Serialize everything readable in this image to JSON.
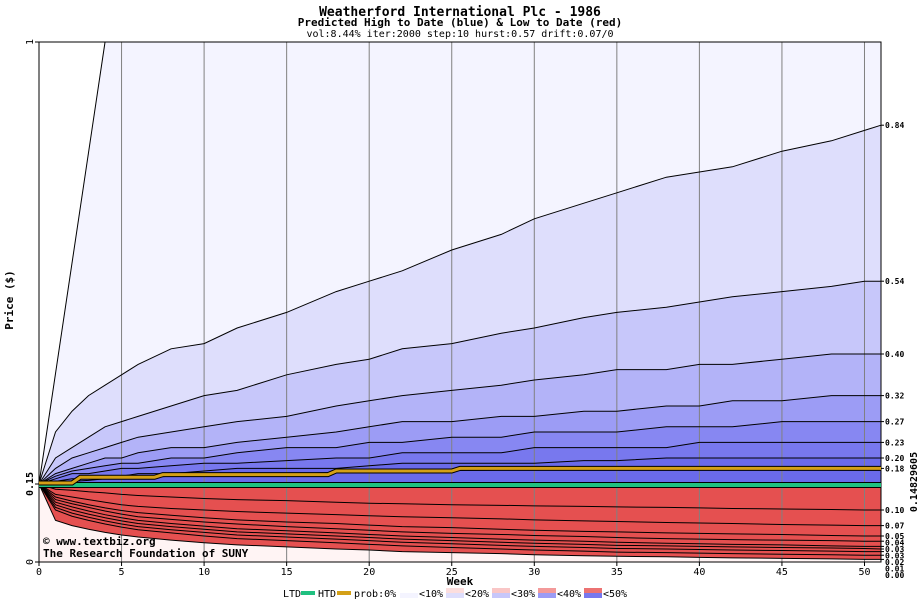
{
  "chart_data": {
    "type": "area",
    "title": "Weatherford International Plc - 1986",
    "subtitle": "Predicted High to Date (blue) &  Low to Date (red)",
    "params": "vol:8.44% iter:2000 step:10 hurst:0.57 drift:0.07/0",
    "xlabel": "Week",
    "ylabel": "Price ($)",
    "xlim": [
      0,
      51
    ],
    "ylim": [
      0,
      1
    ],
    "x_ticks": [
      "0",
      "5",
      "10",
      "15",
      "20",
      "25",
      "30",
      "35",
      "40",
      "45",
      "50"
    ],
    "y_ticks": [
      "0",
      "0.15",
      "1"
    ],
    "start_price": 0.15,
    "grid": true,
    "weeks": [
      0,
      1,
      2,
      3,
      4,
      5,
      6,
      8,
      10,
      12,
      15,
      18,
      20,
      22,
      25,
      28,
      30,
      33,
      35,
      38,
      40,
      42,
      45,
      48,
      50,
      51
    ],
    "high_series": [
      {
        "label": "0.84",
        "values": [
          0.15,
          0.25,
          0.29,
          0.32,
          0.34,
          0.36,
          0.38,
          0.41,
          0.42,
          0.45,
          0.48,
          0.52,
          0.54,
          0.56,
          0.6,
          0.63,
          0.66,
          0.69,
          0.71,
          0.74,
          0.75,
          0.76,
          0.79,
          0.81,
          0.83,
          0.84
        ]
      },
      {
        "label": "0.54",
        "values": [
          0.15,
          0.2,
          0.22,
          0.24,
          0.26,
          0.27,
          0.28,
          0.3,
          0.32,
          0.33,
          0.36,
          0.38,
          0.39,
          0.41,
          0.42,
          0.44,
          0.45,
          0.47,
          0.48,
          0.49,
          0.5,
          0.51,
          0.52,
          0.53,
          0.54,
          0.54
        ]
      },
      {
        "label": "0.40",
        "values": [
          0.15,
          0.18,
          0.2,
          0.21,
          0.22,
          0.23,
          0.24,
          0.25,
          0.26,
          0.27,
          0.28,
          0.3,
          0.31,
          0.32,
          0.33,
          0.34,
          0.35,
          0.36,
          0.37,
          0.37,
          0.38,
          0.38,
          0.39,
          0.4,
          0.4,
          0.4
        ]
      },
      {
        "label": "0.32",
        "values": [
          0.15,
          0.17,
          0.18,
          0.19,
          0.2,
          0.2,
          0.21,
          0.22,
          0.22,
          0.23,
          0.24,
          0.25,
          0.26,
          0.27,
          0.27,
          0.28,
          0.28,
          0.29,
          0.29,
          0.3,
          0.3,
          0.31,
          0.31,
          0.32,
          0.32,
          0.32
        ]
      },
      {
        "label": "0.27",
        "values": [
          0.15,
          0.165,
          0.175,
          0.18,
          0.185,
          0.19,
          0.19,
          0.2,
          0.2,
          0.21,
          0.22,
          0.22,
          0.23,
          0.23,
          0.24,
          0.24,
          0.25,
          0.25,
          0.25,
          0.26,
          0.26,
          0.26,
          0.27,
          0.27,
          0.27,
          0.27
        ]
      },
      {
        "label": "0.23",
        "values": [
          0.15,
          0.16,
          0.17,
          0.17,
          0.175,
          0.18,
          0.18,
          0.185,
          0.19,
          0.19,
          0.195,
          0.2,
          0.2,
          0.21,
          0.21,
          0.21,
          0.22,
          0.22,
          0.22,
          0.22,
          0.23,
          0.23,
          0.23,
          0.23,
          0.23,
          0.23
        ]
      },
      {
        "label": "0.20",
        "values": [
          0.15,
          0.155,
          0.16,
          0.16,
          0.165,
          0.165,
          0.17,
          0.17,
          0.175,
          0.18,
          0.18,
          0.18,
          0.185,
          0.19,
          0.19,
          0.19,
          0.19,
          0.195,
          0.195,
          0.2,
          0.2,
          0.2,
          0.2,
          0.2,
          0.2,
          0.2
        ]
      },
      {
        "label": "0.18",
        "values": [
          0.15,
          0.152,
          0.155,
          0.157,
          0.16,
          0.16,
          0.162,
          0.165,
          0.167,
          0.17,
          0.17,
          0.172,
          0.173,
          0.175,
          0.176,
          0.177,
          0.178,
          0.179,
          0.18,
          0.18,
          0.18,
          0.18,
          0.18,
          0.18,
          0.18,
          0.18
        ]
      }
    ],
    "low_series": [
      {
        "label": "0.10",
        "values": [
          0.15,
          0.14,
          0.138,
          0.135,
          0.133,
          0.13,
          0.128,
          0.125,
          0.122,
          0.12,
          0.118,
          0.115,
          0.113,
          0.112,
          0.11,
          0.109,
          0.108,
          0.107,
          0.106,
          0.105,
          0.104,
          0.103,
          0.102,
          0.101,
          0.1,
          0.1
        ]
      },
      {
        "label": "0.07",
        "values": [
          0.15,
          0.13,
          0.125,
          0.12,
          0.115,
          0.11,
          0.107,
          0.103,
          0.1,
          0.097,
          0.094,
          0.091,
          0.089,
          0.087,
          0.085,
          0.083,
          0.081,
          0.079,
          0.078,
          0.076,
          0.075,
          0.074,
          0.072,
          0.071,
          0.07,
          0.07
        ]
      },
      {
        "label": "0.05",
        "values": [
          0.15,
          0.125,
          0.117,
          0.11,
          0.104,
          0.099,
          0.095,
          0.09,
          0.085,
          0.081,
          0.077,
          0.074,
          0.071,
          0.068,
          0.066,
          0.063,
          0.061,
          0.059,
          0.058,
          0.056,
          0.055,
          0.054,
          0.053,
          0.051,
          0.05,
          0.05
        ]
      },
      {
        "label": "0.04",
        "values": [
          0.15,
          0.12,
          0.112,
          0.105,
          0.098,
          0.092,
          0.087,
          0.082,
          0.077,
          0.073,
          0.068,
          0.064,
          0.061,
          0.058,
          0.055,
          0.053,
          0.051,
          0.049,
          0.047,
          0.045,
          0.044,
          0.043,
          0.042,
          0.041,
          0.04,
          0.04
        ]
      },
      {
        "label": "0.03",
        "values": [
          0.15,
          0.115,
          0.106,
          0.098,
          0.091,
          0.085,
          0.08,
          0.074,
          0.069,
          0.064,
          0.06,
          0.056,
          0.053,
          0.05,
          0.047,
          0.044,
          0.042,
          0.04,
          0.038,
          0.036,
          0.035,
          0.034,
          0.033,
          0.031,
          0.03,
          0.03
        ]
      },
      {
        "label": "0.03",
        "values": [
          0.15,
          0.11,
          0.1,
          0.092,
          0.085,
          0.079,
          0.074,
          0.068,
          0.063,
          0.058,
          0.054,
          0.05,
          0.047,
          0.044,
          0.041,
          0.038,
          0.036,
          0.034,
          0.032,
          0.031,
          0.03,
          0.029,
          0.028,
          0.027,
          0.026,
          0.025
        ]
      },
      {
        "label": "0.02",
        "values": [
          0.15,
          0.105,
          0.094,
          0.086,
          0.079,
          0.073,
          0.068,
          0.062,
          0.057,
          0.052,
          0.048,
          0.044,
          0.041,
          0.038,
          0.035,
          0.032,
          0.03,
          0.028,
          0.026,
          0.025,
          0.024,
          0.023,
          0.022,
          0.021,
          0.02,
          0.02
        ]
      },
      {
        "label": "0.01",
        "values": [
          0.15,
          0.1,
          0.088,
          0.08,
          0.073,
          0.067,
          0.062,
          0.056,
          0.05,
          0.045,
          0.041,
          0.037,
          0.034,
          0.031,
          0.028,
          0.025,
          0.023,
          0.021,
          0.019,
          0.018,
          0.017,
          0.016,
          0.015,
          0.014,
          0.013,
          0.013
        ]
      },
      {
        "label": "0.00",
        "values": [
          0.15,
          0.08,
          0.07,
          0.063,
          0.057,
          0.052,
          0.048,
          0.042,
          0.037,
          0.033,
          0.029,
          0.025,
          0.023,
          0.02,
          0.018,
          0.016,
          0.014,
          0.012,
          0.011,
          0.01,
          0.009,
          0.008,
          0.007,
          0.006,
          0.005,
          0.005
        ]
      }
    ],
    "outer_high": {
      "weeks": [
        0,
        4
      ],
      "values": [
        0.15,
        1.0
      ]
    },
    "htd_line": {
      "name": "HTD",
      "color": "#d4a017",
      "weeks": [
        0,
        2,
        2.5,
        7,
        7.5,
        17.5,
        18,
        25,
        25.5,
        51
      ],
      "values": [
        0.152,
        0.152,
        0.163,
        0.163,
        0.168,
        0.168,
        0.175,
        0.175,
        0.18,
        0.18
      ]
    },
    "ltd_line": {
      "name": "LTD",
      "color": "#20c080",
      "weeks": [
        0,
        51
      ],
      "values": [
        0.148,
        0.148
      ]
    },
    "right_axis_label": "0.14829605",
    "legend": {
      "ltd": "LTD",
      "htd": "HTD",
      "prob_label": "prob:0%",
      "bins": [
        "<10%",
        "<20%",
        "<30%",
        "<40%",
        "<50%"
      ]
    },
    "colors": {
      "blue_bands": [
        "#f4f4ff",
        "#dedefc",
        "#c7c7fa",
        "#b3b3f8",
        "#9c9cf5",
        "#8787f2",
        "#7878ee",
        "#6a6aea"
      ],
      "red_bands": [
        "#fff4f4",
        "#fcdede",
        "#f9c6c6",
        "#f6b0b0",
        "#f39a9a",
        "#f08585",
        "#ec7272",
        "#e86060",
        "#e55050"
      ],
      "htd": "#d4a017",
      "ltd": "#20c080",
      "grid": "#808080"
    },
    "watermark": {
      "line1": "© www.textbiz.org",
      "line2": "The Research Foundation of SUNY"
    }
  }
}
